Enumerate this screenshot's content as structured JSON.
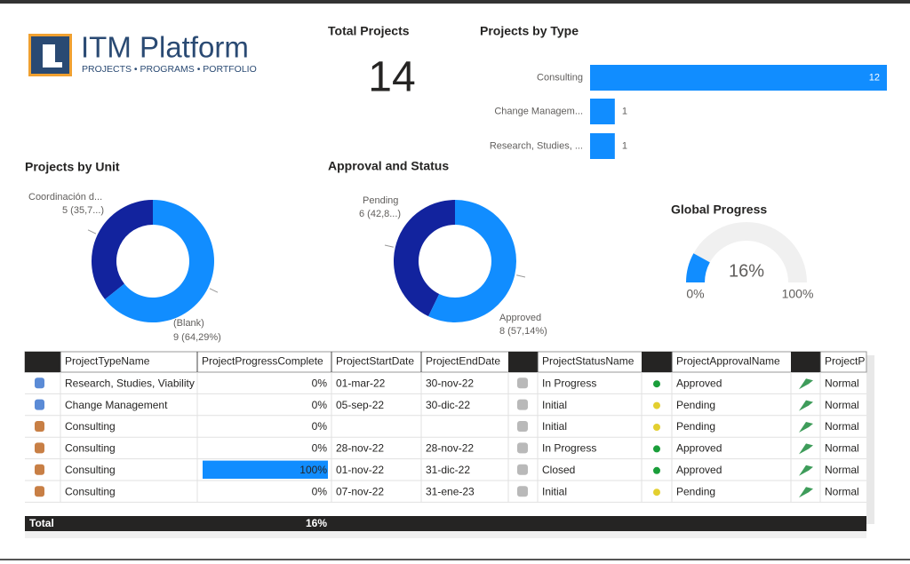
{
  "logo": {
    "title": "ITM Platform",
    "subtitle": "PROJECTS • PROGRAMS • PORTFOLIO"
  },
  "kpi": {
    "title": "Total Projects",
    "value": 14
  },
  "chart_data": [
    {
      "type": "bar",
      "title": "Projects by Type",
      "categories": [
        "Consulting",
        "Change Managem...",
        "Research, Studies, ..."
      ],
      "values": [
        12,
        1,
        1
      ],
      "color": "#118dff"
    },
    {
      "type": "donut",
      "title": "Projects by Unit",
      "categories": [
        "Coordinación d...",
        "(Blank)"
      ],
      "values": [
        5,
        9
      ],
      "value_labels": [
        "5 (35,7...)",
        "9 (64,29%)"
      ],
      "colors": [
        "#12239e",
        "#118dff"
      ]
    },
    {
      "type": "donut",
      "title": "Approval and Status",
      "categories": [
        "Pending",
        "Approved"
      ],
      "values": [
        6,
        8
      ],
      "value_labels": [
        "6 (42,8...)",
        "8 (57,14%)"
      ],
      "colors": [
        "#12239e",
        "#118dff"
      ]
    },
    {
      "type": "gauge",
      "title": "Global Progress",
      "value": 16,
      "value_label": "16%",
      "ylim": [
        0,
        100
      ],
      "yticks": [
        {
          "value": 0,
          "label": "0%"
        },
        {
          "value": 100,
          "label": "100%"
        }
      ],
      "color": "#118dff"
    }
  ],
  "table": {
    "columns": [
      "ProjectTypeName",
      "ProjectProgressComplete",
      "ProjectStartDate",
      "ProjectEndDate",
      "ProjectStatusName",
      "ProjectApprovalName",
      "ProjectP"
    ],
    "rows": [
      {
        "type": "Research, Studies, Viability",
        "progress": {
          "value": 0,
          "label": "0%"
        },
        "start": "01-mar-22",
        "end": "30-nov-22",
        "status": "In Progress",
        "approval": "Approved",
        "approval_color": "#1a9e3a",
        "priority": "Normal"
      },
      {
        "type": "Change Management",
        "progress": {
          "value": 0,
          "label": "0%"
        },
        "start": "05-sep-22",
        "end": "30-dic-22",
        "status": "Initial",
        "approval": "Pending",
        "approval_color": "#e3cf2f",
        "priority": "Normal"
      },
      {
        "type": "Consulting",
        "progress": {
          "value": 0,
          "label": "0%"
        },
        "start": null,
        "end": null,
        "status": "Initial",
        "approval": "Pending",
        "approval_color": "#e3cf2f",
        "priority": "Normal"
      },
      {
        "type": "Consulting",
        "progress": {
          "value": 0,
          "label": "0%"
        },
        "start": "28-nov-22",
        "end": "28-nov-22",
        "status": "In Progress",
        "approval": "Approved",
        "approval_color": "#1a9e3a",
        "priority": "Normal"
      },
      {
        "type": "Consulting",
        "progress": {
          "value": 100,
          "label": "100%"
        },
        "start": "01-nov-22",
        "end": "31-dic-22",
        "status": "Closed",
        "approval": "Approved",
        "approval_color": "#1a9e3a",
        "priority": "Normal"
      },
      {
        "type": "Consulting",
        "progress": {
          "value": 0,
          "label": "0%"
        },
        "start": "07-nov-22",
        "end": "31-ene-23",
        "status": "Initial",
        "approval": "Pending",
        "approval_color": "#e3cf2f",
        "priority": "Normal"
      }
    ],
    "total": {
      "label": "Total",
      "progress": "16%"
    }
  }
}
